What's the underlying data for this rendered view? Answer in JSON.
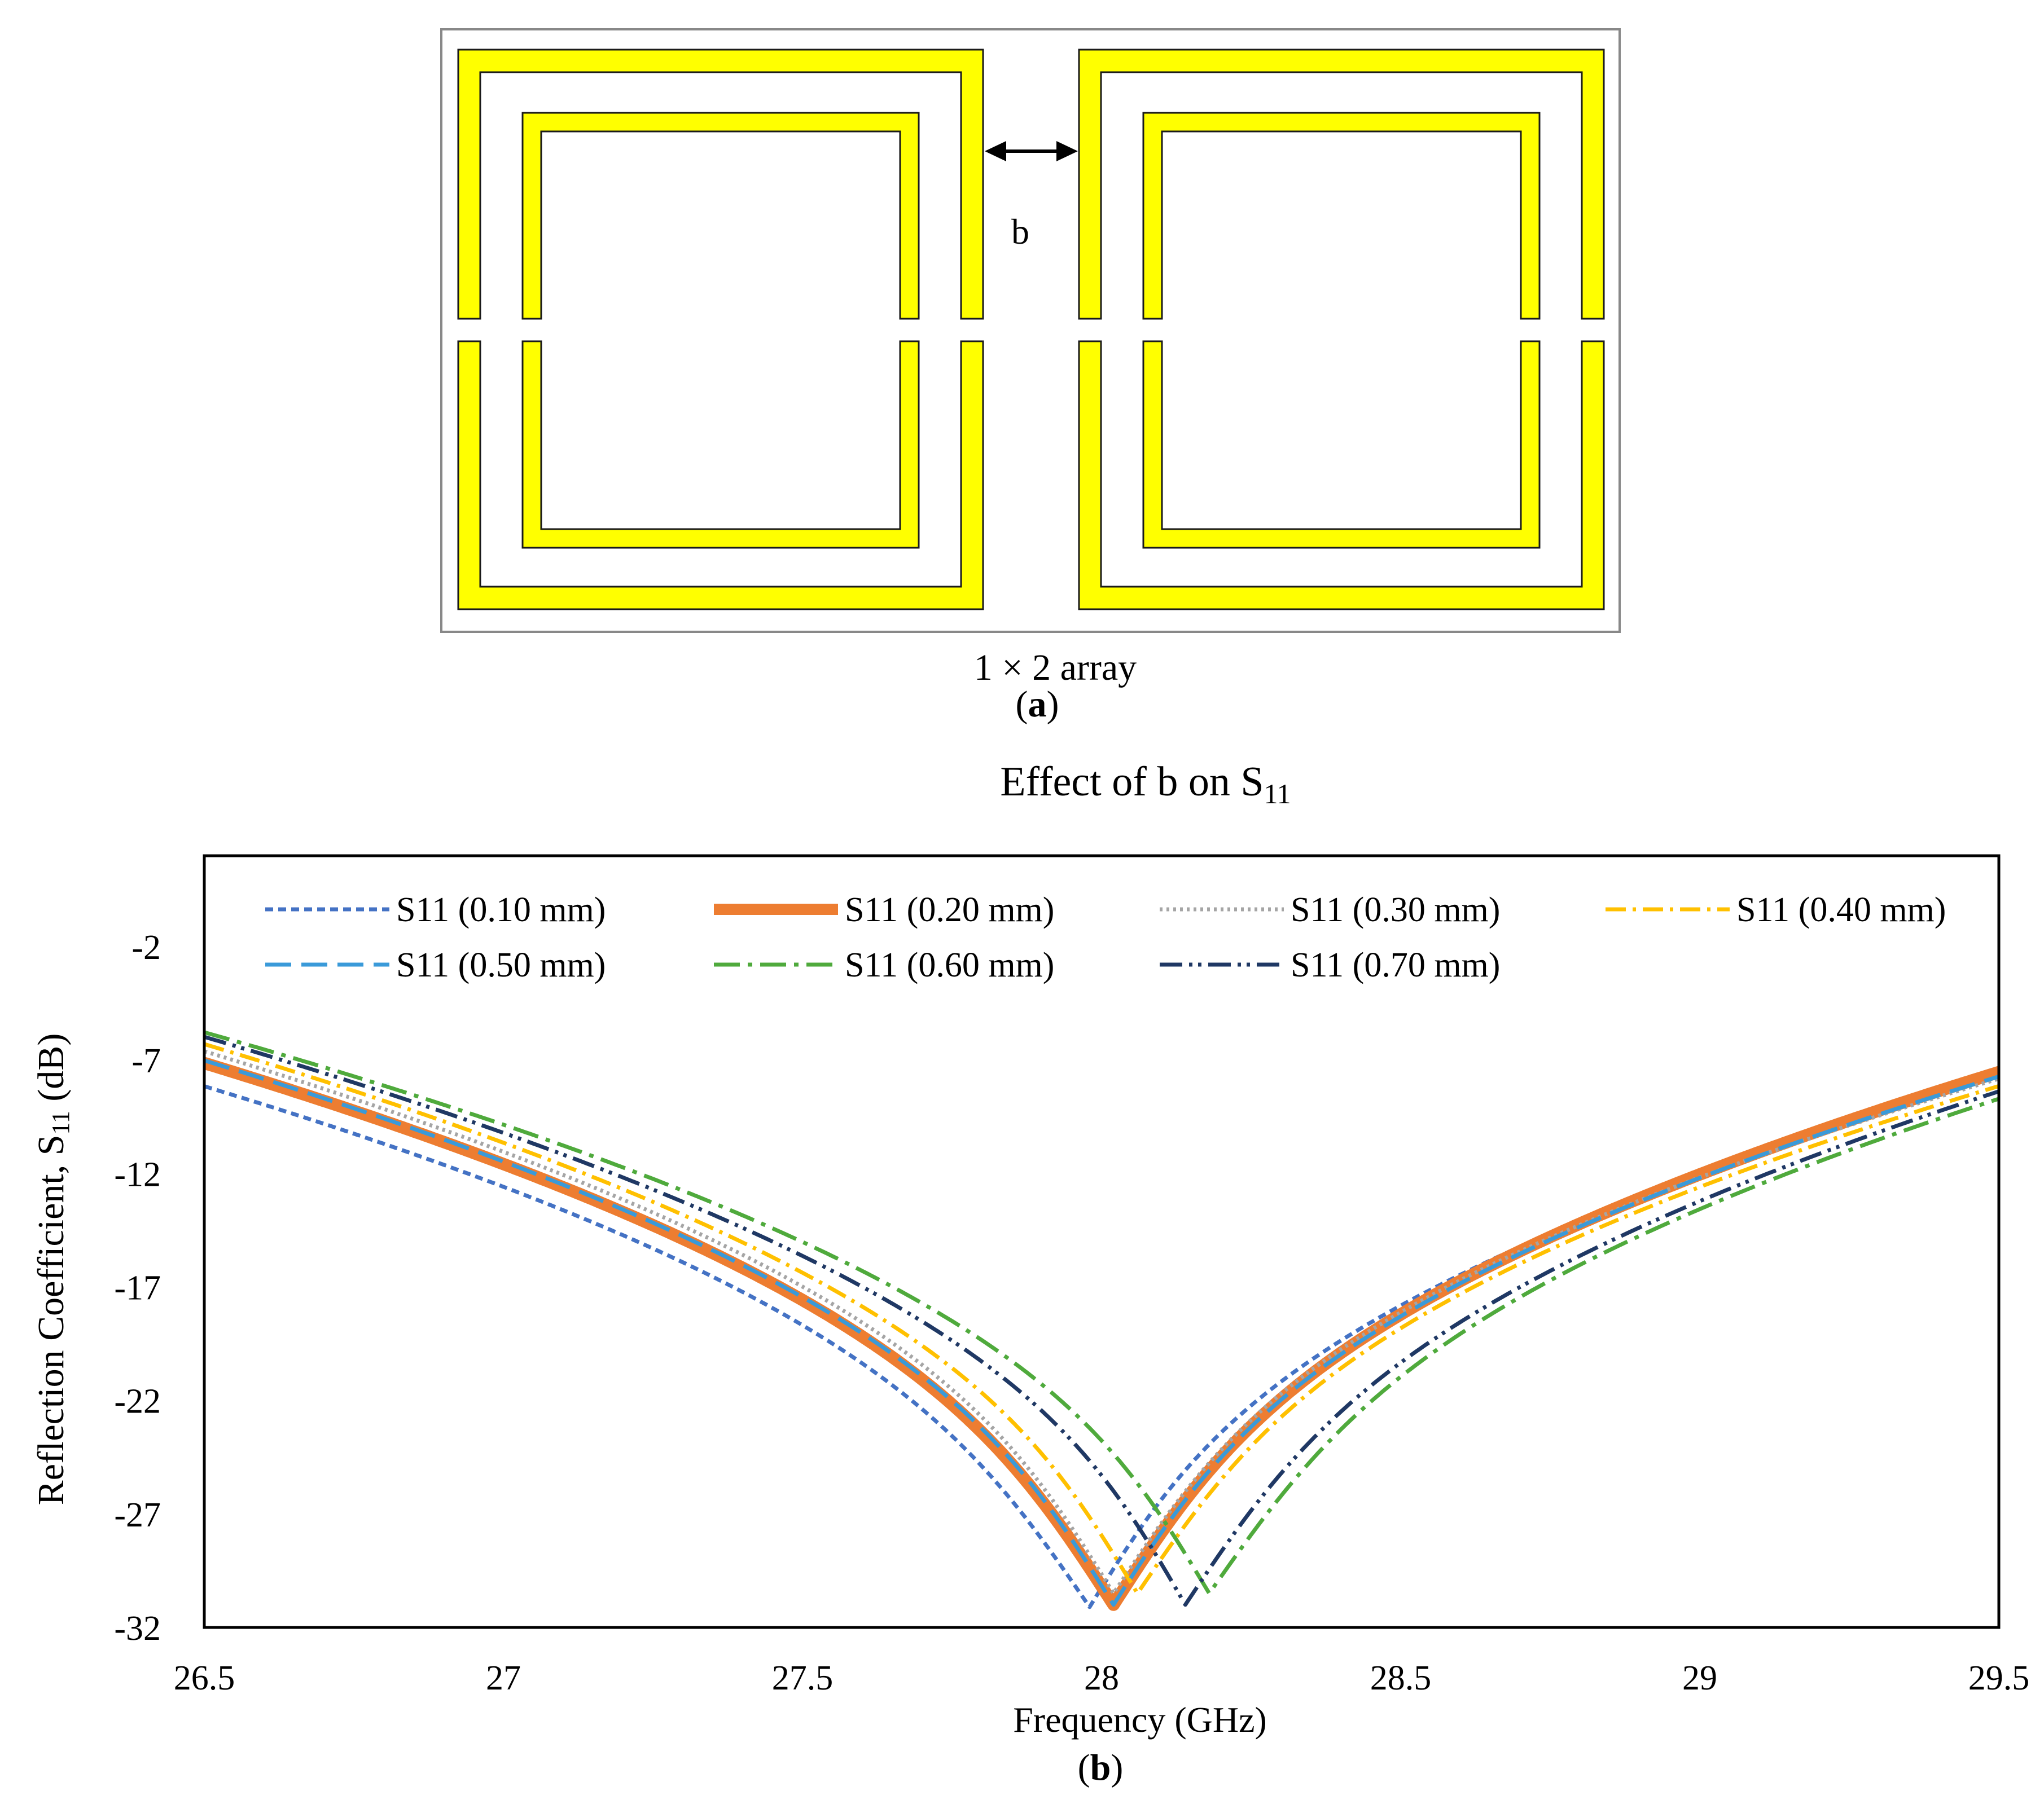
{
  "panel_a": {
    "gap_label": "b",
    "array_caption": "1 × 2 array",
    "panel_label_open": "(",
    "panel_label_letter": "a",
    "panel_label_close": ")",
    "colors": {
      "ring_fill": "#ffff00",
      "ring_edge": "#1a1a1a",
      "substrate_edge": "#888888"
    }
  },
  "panel_b": {
    "title_main": "Effect of b on S",
    "title_sub": "11",
    "panel_label_open": "(",
    "panel_label_letter": "b",
    "panel_label_close": ")"
  },
  "chart_data": {
    "type": "line",
    "title": "Effect of b on S11",
    "xlabel": "Frequency (GHz)",
    "ylabel_main": "Reflection Coefficient, S",
    "ylabel_sub": "11",
    "ylabel_tail": " (dB)",
    "xlim": [
      26.5,
      29.5
    ],
    "ylim": [
      -32,
      2
    ],
    "xticks": [
      "26.5",
      "27",
      "27.5",
      "28",
      "28.5",
      "29",
      "29.5"
    ],
    "yticks": [
      "-2",
      "-7",
      "-12",
      "-17",
      "-22",
      "-27",
      "-32"
    ],
    "legend_position": "top",
    "series": [
      {
        "name": "S11 (0.10 mm)",
        "color": "#4472c4",
        "style": "short-dash",
        "f0": 27.98,
        "min": -31.1,
        "bw_lo": 0.245,
        "bw_hi": 0.2,
        "y_start": -8.0,
        "y_end": -7.6
      },
      {
        "name": "S11 (0.20 mm)",
        "color": "#ed7d31",
        "style": "thick",
        "f0": 28.02,
        "min": -31.0,
        "bw_lo": 0.23,
        "bw_hi": 0.225,
        "y_start": -7.0,
        "y_end": -7.4
      },
      {
        "name": "S11 (0.30 mm)",
        "color": "#a5a5a5",
        "style": "dot",
        "f0": 28.02,
        "min": -30.5,
        "bw_lo": 0.21,
        "bw_hi": 0.22,
        "y_start": -6.5,
        "y_end": -7.7
      },
      {
        "name": "S11 (0.40 mm)",
        "color": "#ffc000",
        "style": "dash-dot",
        "f0": 28.06,
        "min": -30.5,
        "bw_lo": 0.2,
        "bw_hi": 0.235,
        "y_start": -6.2,
        "y_end": -8.0
      },
      {
        "name": "S11 (0.50 mm)",
        "color": "#3a9ad9",
        "style": "long-dash",
        "f0": 28.02,
        "min": -31.0,
        "bw_lo": 0.215,
        "bw_hi": 0.22,
        "y_start": -6.9,
        "y_end": -7.6
      },
      {
        "name": "S11 (0.60 mm)",
        "color": "#4faa3c",
        "style": "long-dash-dot",
        "f0": 28.18,
        "min": -30.5,
        "bw_lo": 0.19,
        "bw_hi": 0.26,
        "y_start": -5.7,
        "y_end": -8.5
      },
      {
        "name": "S11 (0.70 mm)",
        "color": "#1f3864",
        "style": "long-dash-dot-dot",
        "f0": 28.14,
        "min": -31.0,
        "bw_lo": 0.185,
        "bw_hi": 0.245,
        "y_start": -5.9,
        "y_end": -8.2
      }
    ]
  }
}
